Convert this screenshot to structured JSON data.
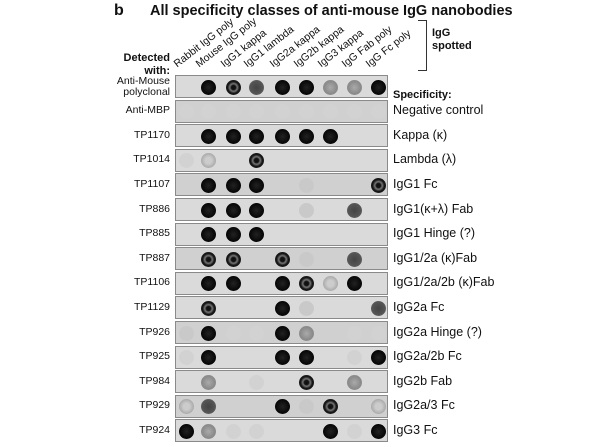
{
  "figure": {
    "panel_letter": "b",
    "title": "All specificity classes of anti-mouse IgG nanobodies",
    "detected_with_label": "Detected with:",
    "igg_spotted_label": "IgG spotted",
    "specificity_header": "Specificity:",
    "columns": [
      "Rabbit IgG poly",
      "Mouse IgG poly",
      "IgG1 kappa",
      "IgG1 lambda",
      "IgG2a kappa",
      "IgG2b kappa",
      "IgG3 kappa",
      "IgG Fab poly",
      "IgG Fc poly"
    ],
    "rows": [
      {
        "label": "Anti-Mouse polyclonal",
        "specificity": "",
        "spots": [
          0,
          3,
          2.5,
          2,
          3,
          3,
          1.5,
          1.5,
          3
        ]
      },
      {
        "label": "Anti-MBP",
        "specificity": "Negative control",
        "spots": [
          0.3,
          0.3,
          0.3,
          0.3,
          0.2,
          0.3,
          0.3,
          0.3,
          0.3
        ]
      },
      {
        "label": "TP1170",
        "specificity": "Kappa (κ)",
        "spots": [
          0,
          3,
          3,
          3,
          3,
          3,
          3,
          0,
          0
        ]
      },
      {
        "label": "TP1014",
        "specificity": "Lambda (λ)",
        "spots": [
          0.3,
          1,
          0,
          2.5,
          0,
          0,
          0,
          0,
          0
        ]
      },
      {
        "label": "TP1107",
        "specificity": "IgG1 Fc",
        "spots": [
          0,
          3,
          3,
          3,
          0,
          0.6,
          0,
          0,
          2.5
        ]
      },
      {
        "label": "TP886",
        "specificity": "IgG1(κ+λ) Fab",
        "spots": [
          0,
          3,
          3,
          3,
          0,
          0.6,
          0,
          2,
          0
        ]
      },
      {
        "label": "TP885",
        "specificity": "IgG1 Hinge (?)",
        "spots": [
          0,
          3,
          3,
          3,
          0,
          0,
          0,
          0,
          0
        ]
      },
      {
        "label": "TP887",
        "specificity": "IgG1/2a (κ)Fab",
        "spots": [
          0,
          2.5,
          2.5,
          0,
          2.5,
          0.5,
          0,
          2,
          0
        ]
      },
      {
        "label": "TP1106",
        "specificity": "IgG1/2a/2b (κ)Fab",
        "spots": [
          0,
          3,
          3,
          0,
          3,
          2.5,
          1,
          3,
          0
        ]
      },
      {
        "label": "TP1129",
        "specificity": "IgG2a Fc",
        "spots": [
          0,
          2.5,
          0,
          0,
          3,
          0.5,
          0,
          0,
          2
        ]
      },
      {
        "label": "TP926",
        "specificity": "IgG2a Hinge (?)",
        "spots": [
          0.5,
          3,
          0.4,
          0.4,
          3,
          1.5,
          0,
          0.3,
          0.3
        ]
      },
      {
        "label": "TP925",
        "specificity": "IgG2a/2b Fc",
        "spots": [
          0.3,
          3,
          0,
          0,
          3,
          3,
          0,
          0.3,
          3
        ]
      },
      {
        "label": "TP984",
        "specificity": "IgG2b Fab",
        "spots": [
          0,
          1.5,
          0,
          0.3,
          0,
          2.5,
          0,
          1.5,
          0
        ]
      },
      {
        "label": "TP929",
        "specificity": "IgG2a/3 Fc",
        "spots": [
          1,
          2,
          0,
          0,
          3,
          0.5,
          2.5,
          0,
          1
        ]
      },
      {
        "label": "TP924",
        "specificity": "IgG3 Fc",
        "spots": [
          3,
          1.5,
          0.4,
          0.4,
          0,
          0,
          3,
          0.3,
          3
        ]
      }
    ]
  }
}
